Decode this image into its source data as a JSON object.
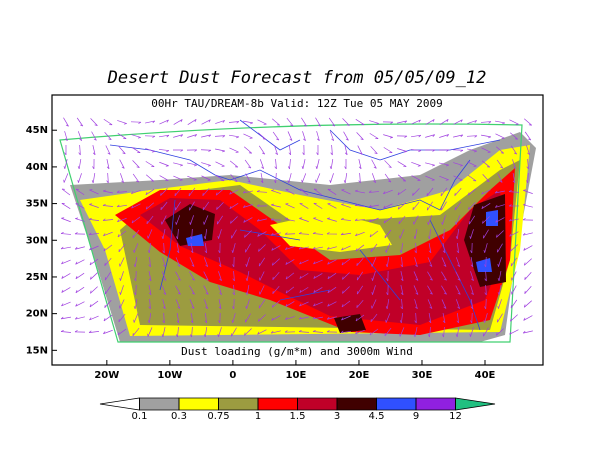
{
  "map": {
    "title": "Desert Dust Forecast from 05/05/09_12",
    "subtitle": "00Hr TAU/DREAM-8b Valid: 12Z Tue 05 MAY 2009",
    "caption": "Dust loading (g/m*m) and 3000m Wind",
    "xlim": [
      -28.7,
      49.2
    ],
    "ylim": [
      13,
      49.8
    ],
    "xticks": [
      {
        "value": -20,
        "label": "20W"
      },
      {
        "value": -10,
        "label": "10W"
      },
      0,
      {
        "value": 10,
        "label": "10E"
      },
      {
        "value": 20,
        "label": "20E"
      },
      {
        "value": 30,
        "label": "30E"
      },
      {
        "value": 40,
        "label": "40E"
      }
    ],
    "yticks": [
      {
        "value": 15,
        "label": "15N"
      },
      {
        "value": 20,
        "label": "20N"
      },
      {
        "value": 25,
        "label": "25N"
      },
      {
        "value": 30,
        "label": "30N"
      },
      {
        "value": 35,
        "label": "35N"
      },
      {
        "value": 40,
        "label": "40N"
      },
      {
        "value": 45,
        "label": "45N"
      }
    ]
  },
  "colorbar": {
    "levels": [
      0.1,
      0.3,
      0.75,
      1,
      1.5,
      3,
      4.5,
      9,
      12
    ],
    "colors": [
      "#ffffff",
      "#a0a0a0",
      "#ffff00",
      "#9c9c40",
      "#ff0000",
      "#c00028",
      "#400000",
      "#3050ff",
      "#9020e0",
      "#20c080"
    ]
  }
}
